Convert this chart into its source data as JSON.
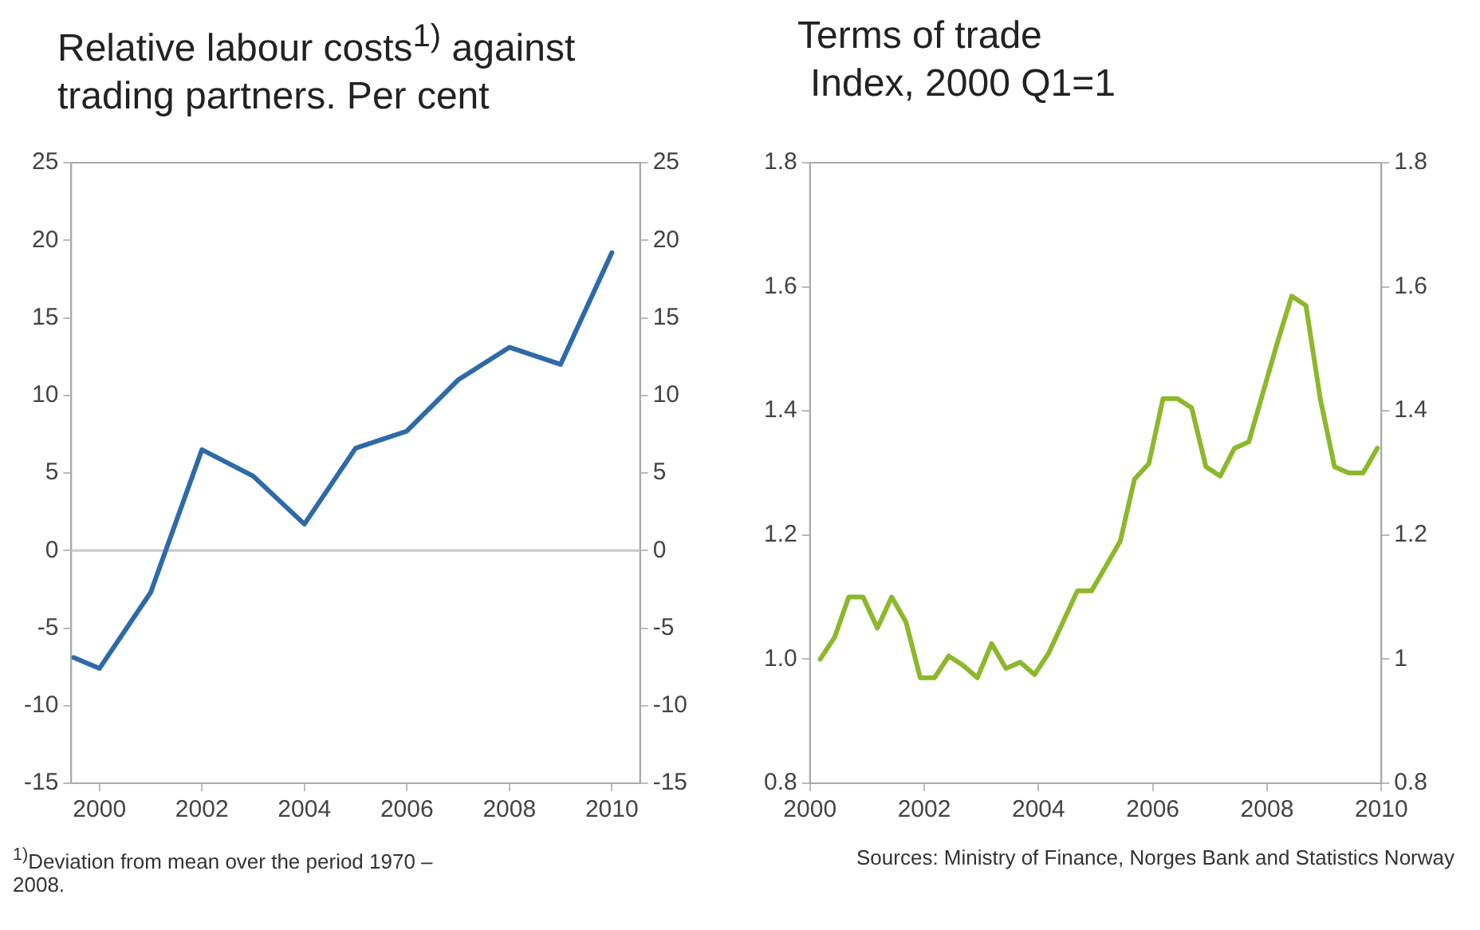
{
  "chart_data": [
    {
      "type": "line",
      "title": "Relative labour costs$^{1)}$ against trading partners. Per cent",
      "x": [
        1999.5,
        2000,
        2001,
        2002,
        2003,
        2004,
        2005,
        2006,
        2007,
        2008,
        2009,
        2010
      ],
      "series": [
        {
          "color": "#2e6aa8",
          "values": [
            -6.9,
            -7.6,
            -2.7,
            6.5,
            4.8,
            1.7,
            6.6,
            7.7,
            11.0,
            13.1,
            12.0,
            19.2
          ]
        }
      ],
      "xlim": [
        1999.45,
        2010.55
      ],
      "xticks": [
        2000,
        2002,
        2004,
        2006,
        2008,
        2010
      ],
      "ylim": [
        -15,
        25
      ],
      "yticks": [
        -15,
        -10,
        -5,
        0,
        5,
        10,
        15,
        20,
        25
      ],
      "y2lim": [
        -15,
        25
      ],
      "y2ticks": [
        -15,
        -10,
        -5,
        0,
        5,
        10,
        15,
        20,
        25
      ],
      "ref_lines": [
        {
          "axis": "y",
          "value": 0,
          "color": "#c8c8c8"
        }
      ],
      "grid": false,
      "legend": false,
      "annotations": [
        "$^{1)}$Deviation from mean over the period 1970 – 2008."
      ]
    },
    {
      "type": "line",
      "title": "Terms of trade",
      "subtitle": "Index, 2000 Q1=1",
      "x": [
        2000.18,
        2000.43,
        2000.68,
        2000.93,
        2001.18,
        2001.43,
        2001.68,
        2001.93,
        2002.18,
        2002.43,
        2002.68,
        2002.93,
        2003.18,
        2003.43,
        2003.68,
        2003.93,
        2004.18,
        2004.43,
        2004.68,
        2004.93,
        2005.18,
        2005.43,
        2005.68,
        2005.93,
        2006.18,
        2006.43,
        2006.68,
        2006.93,
        2007.18,
        2007.43,
        2007.68,
        2007.93,
        2008.18,
        2008.43,
        2008.68,
        2008.93,
        2009.18,
        2009.43,
        2009.68,
        2009.93
      ],
      "series": [
        {
          "color": "#8cb82b",
          "values": [
            1.0,
            1.035,
            1.1,
            1.1,
            1.05,
            1.1,
            1.06,
            0.97,
            0.97,
            1.005,
            0.99,
            0.97,
            1.025,
            0.985,
            0.995,
            0.975,
            1.01,
            1.06,
            1.11,
            1.11,
            1.15,
            1.19,
            1.29,
            1.315,
            1.42,
            1.42,
            1.405,
            1.31,
            1.295,
            1.34,
            1.35,
            1.43,
            1.51,
            1.585,
            1.57,
            1.42,
            1.31,
            1.3,
            1.3,
            1.34
          ]
        }
      ],
      "xlim": [
        2000,
        2010
      ],
      "xticks": [
        2000,
        2002,
        2004,
        2006,
        2008,
        2010
      ],
      "ylim": [
        0.8,
        1.8
      ],
      "yticks": [
        0.8,
        {
          "value": 1,
          "label": "1.0"
        },
        1.2,
        1.4,
        1.6,
        1.8
      ],
      "y2lim": [
        0.8,
        1.8
      ],
      "y2ticks": [
        0.8,
        1,
        1.2,
        1.4,
        1.6,
        1.8
      ],
      "grid": false,
      "legend": false,
      "annotations": [
        "Sources: Ministry of Finance, Norges Bank and Statistics Norway"
      ]
    }
  ]
}
